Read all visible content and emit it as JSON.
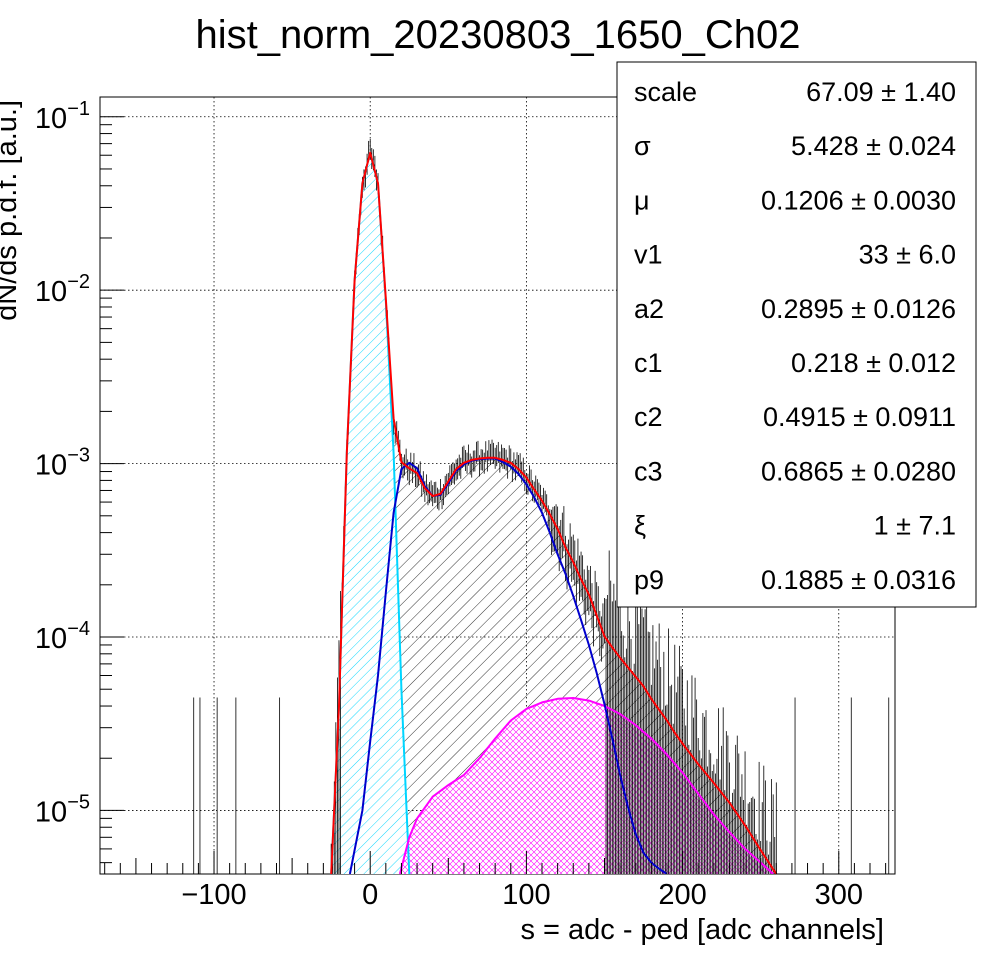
{
  "chart_data": {
    "type": "line",
    "title": "hist_norm_20230803_1650_Ch02",
    "xlabel": "s = adc - ped [adc channels]",
    "ylabel": "dN/ds p.d.f. [a.u.]",
    "xlim": [
      -173,
      336
    ],
    "ylim": [
      4.3e-06,
      0.13
    ],
    "yscale": "log",
    "grid": true,
    "x_ticks": [
      {
        "value": -100,
        "label": "−100"
      },
      {
        "value": 0,
        "label": "0"
      },
      {
        "value": 100,
        "label": "100"
      },
      {
        "value": 200,
        "label": "200"
      },
      {
        "value": 300,
        "label": "300"
      }
    ],
    "y_ticks": [
      {
        "value": 0.1,
        "mant": "10",
        "exp": "−1"
      },
      {
        "value": 0.01,
        "mant": "10",
        "exp": "−2"
      },
      {
        "value": 0.001,
        "mant": "10",
        "exp": "−3"
      },
      {
        "value": 0.0001,
        "mant": "10",
        "exp": "−4"
      },
      {
        "value": 1e-05,
        "mant": "10",
        "exp": "−5"
      }
    ],
    "fit_params": {
      "scale": 67.09,
      "sigma": 5.428,
      "mu": 0.1206,
      "v1": 33,
      "a2": 0.2895,
      "c1": 0.218,
      "c2": 0.4915,
      "c3": 0.6865,
      "xi": 1,
      "p9": 0.1885
    },
    "series": [
      {
        "color": "#ff0000",
        "x": [
          -25,
          -20,
          -15,
          -10,
          -5,
          0,
          5,
          10,
          15,
          20,
          25,
          30,
          35,
          40,
          45,
          50,
          55,
          60,
          65,
          70,
          75,
          80,
          85,
          90,
          95,
          100,
          105,
          110,
          115,
          120,
          125,
          130,
          135,
          140,
          145,
          150,
          155,
          160,
          165,
          170,
          175,
          180,
          185,
          190,
          195,
          200,
          210,
          220,
          230,
          240,
          250,
          260
        ],
        "y": [
          4.3e-06,
          4e-05,
          0.00115,
          0.0114,
          0.0413,
          0.0621,
          0.0413,
          0.00897,
          0.00182,
          0.00102,
          0.00094,
          0.00088,
          0.00072,
          0.00065,
          0.00067,
          0.00079,
          0.00093,
          0.00101,
          0.00105,
          0.00107,
          0.00108,
          0.00108,
          0.00105,
          0.00101,
          0.00093,
          0.00083,
          0.00071,
          0.00061,
          0.00051,
          0.00042,
          0.00033,
          0.00027,
          0.000215,
          0.000176,
          0.000133,
          0.000101,
          8.7e-05,
          7.6e-05,
          6.7e-05,
          5.9e-05,
          5.2e-05,
          4.4e-05,
          3.8e-05,
          3.3e-05,
          2.8e-05,
          2.43e-05,
          1.85e-05,
          1.44e-05,
          1.11e-05,
          8.2e-06,
          5.9e-06,
          4.3e-06
        ]
      },
      {
        "color": "#00d5ff",
        "x": [
          -25,
          -20,
          -15,
          -10,
          -5,
          0,
          5,
          10,
          15,
          20,
          25
        ],
        "y": [
          4.3e-06,
          4e-05,
          0.00115,
          0.0114,
          0.0413,
          0.0621,
          0.0413,
          0.0087,
          0.00115,
          5e-05,
          4.3e-06
        ]
      },
      {
        "color": "#0000cc",
        "x": [
          -13,
          -5,
          0,
          5,
          10,
          15,
          20,
          25,
          30,
          35,
          40,
          45,
          50,
          55,
          60,
          65,
          70,
          75,
          80,
          85,
          90,
          95,
          100,
          105,
          110,
          115,
          120,
          125,
          130,
          135,
          140,
          145,
          150,
          155,
          160,
          165,
          170,
          175,
          180,
          185,
          190
        ],
        "y": [
          4.3e-06,
          1e-05,
          2.5e-05,
          6e-05,
          0.00018,
          0.00052,
          0.00093,
          0.00101,
          0.00094,
          0.00074,
          0.00065,
          0.00066,
          0.00077,
          0.00091,
          0.00099,
          0.00104,
          0.00106,
          0.00107,
          0.00107,
          0.00102,
          0.00096,
          0.00087,
          0.00076,
          0.00064,
          0.00052,
          0.0004,
          0.0003,
          0.000232,
          0.000172,
          0.000125,
          9e-05,
          6.2e-05,
          4.1e-05,
          2.6e-05,
          1.6e-05,
          1.05e-05,
          7.3e-06,
          5.7e-06,
          5e-06,
          4.6e-06,
          4.3e-06
        ]
      },
      {
        "color": "#ff00ff",
        "x": [
          19,
          25,
          30,
          40,
          50,
          60,
          70,
          80,
          90,
          100,
          110,
          120,
          130,
          140,
          150,
          160,
          170,
          180,
          190,
          200,
          210,
          220,
          230,
          240,
          250,
          258
        ],
        "y": [
          4.3e-06,
          7e-06,
          9e-06,
          1.2e-05,
          1.4e-05,
          1.6e-05,
          2e-05,
          2.6e-05,
          3.3e-05,
          3.85e-05,
          4.2e-05,
          4.4e-05,
          4.45e-05,
          4.3e-05,
          4e-05,
          3.6e-05,
          3.1e-05,
          2.6e-05,
          2.1e-05,
          1.65e-05,
          1.25e-05,
          9.5e-06,
          7.5e-06,
          6e-06,
          5e-06,
          4.3e-06
        ]
      }
    ]
  },
  "stats": [
    {
      "name": "scale",
      "value": "67.09",
      "err": "1.40"
    },
    {
      "name": "σ",
      "value": "5.428",
      "err": "0.024"
    },
    {
      "name": "μ",
      "value": "0.1206",
      "err": "0.0030"
    },
    {
      "name": "v1",
      "value": "33",
      "err": "6.0"
    },
    {
      "name": "a2",
      "value": "0.2895",
      "err": "0.0126"
    },
    {
      "name": "c1",
      "value": "0.218",
      "err": "0.012"
    },
    {
      "name": "c2",
      "value": "0.4915",
      "err": "0.0911"
    },
    {
      "name": "c3",
      "value": "0.6865",
      "err": "0.0280"
    },
    {
      "name": "ξ",
      "value": "1",
      "err": "7.1"
    },
    {
      "name": "p9",
      "value": "0.1885",
      "err": "0.0316"
    }
  ]
}
